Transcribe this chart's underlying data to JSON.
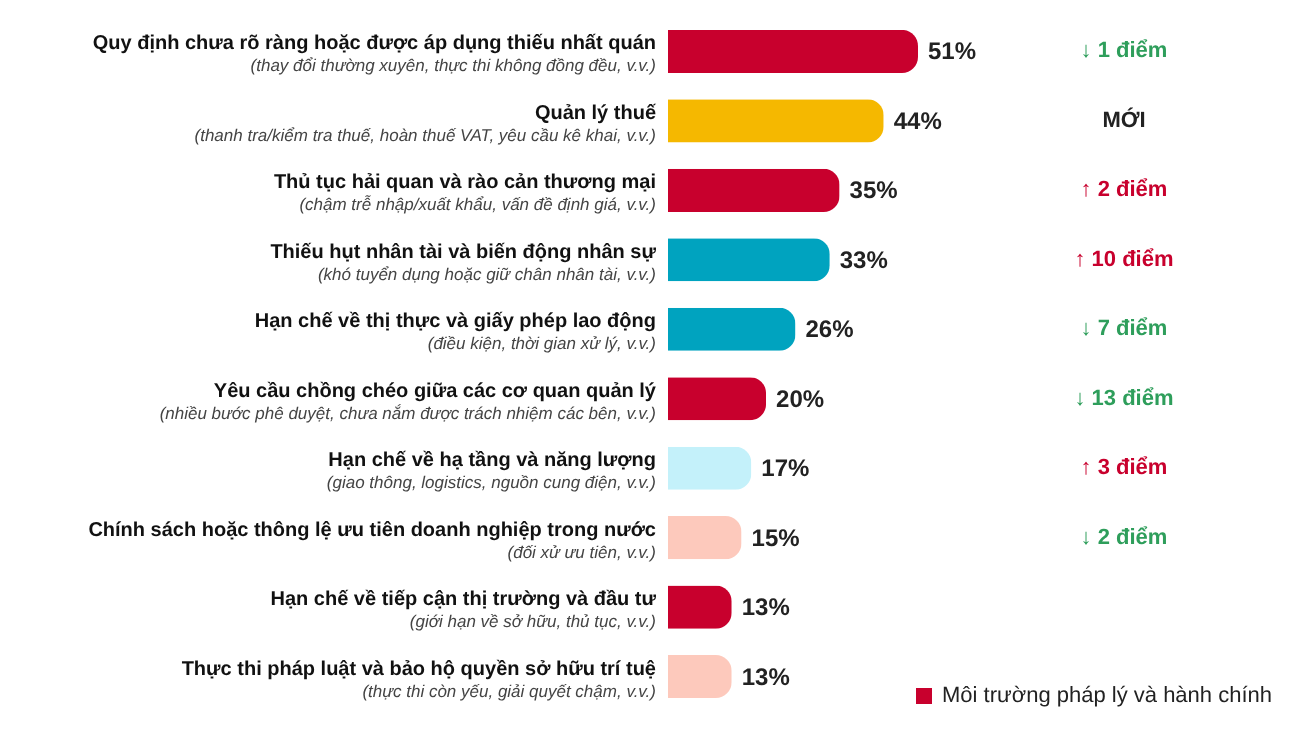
{
  "chart_data": {
    "type": "bar",
    "orientation": "horizontal",
    "categories": [
      "Quy định chưa rõ ràng hoặc được áp dụng thiếu nhất quán",
      "Quản lý thuế",
      "Thủ tục hải quan và rào cản thương mại",
      "Thiếu hụt nhân tài và biến động nhân sự",
      "Hạn chế về thị thực và giấy phép lao động",
      "Yêu cầu chồng chéo giữa các cơ quan quản lý",
      "Hạn chế về hạ tầng và năng lượng",
      "Chính sách hoặc thông lệ ưu tiên doanh nghiệp trong nước",
      "Hạn chế về tiếp cận thị trường và đầu tư",
      "Thực thi pháp luật và bảo hộ quyền sở hữu trí tuệ"
    ],
    "values": [
      51,
      44,
      35,
      33,
      26,
      20,
      17,
      15,
      13,
      13
    ],
    "colors": [
      "#c8002d",
      "#f5b800",
      "#c8002d",
      "#00a3bf",
      "#00a3bf",
      "#c8002d",
      "#c4f1fa",
      "#fdc9bc",
      "#c8002d",
      "#fdc9bc"
    ],
    "value_labels": [
      "51%",
      "44%",
      "35%",
      "33%",
      "26%",
      "20%",
      "17%",
      "15%",
      "13%",
      "13%"
    ],
    "annotations": [
      "(thay đổi thường xuyên, thực thi không đồng đều, v.v.)",
      "(thanh tra/kiểm tra thuế, hoàn thuế VAT, yêu cầu kê khai, v.v.)",
      "(chậm trễ nhập/xuất khẩu, vấn đề định giá, v.v.)",
      "(khó tuyển dụng hoặc giữ chân nhân tài, v.v.)",
      "(điều kiện, thời gian xử lý, v.v.)",
      "(nhiều bước phê duyệt, chưa nắm được trách nhiệm các bên, v.v.)",
      "(giao thông, logistics, nguồn cung điện, v.v.)",
      "(đối xử ưu tiên, v.v.)",
      "(giới hạn về sở hữu, thủ tục, v.v.)",
      "(thực thi còn yếu, giải quyết chậm, v.v.)",
      "↓ 1 điểm",
      "MỚI",
      "↑ 2 điểm",
      "↑ 10 điểm",
      "↓ 7 điểm",
      "↓ 13 điểm",
      "↑ 3 điểm",
      "↓ 2 điểm",
      "Môi trường pháp lý và hành chính"
    ]
  }
}
